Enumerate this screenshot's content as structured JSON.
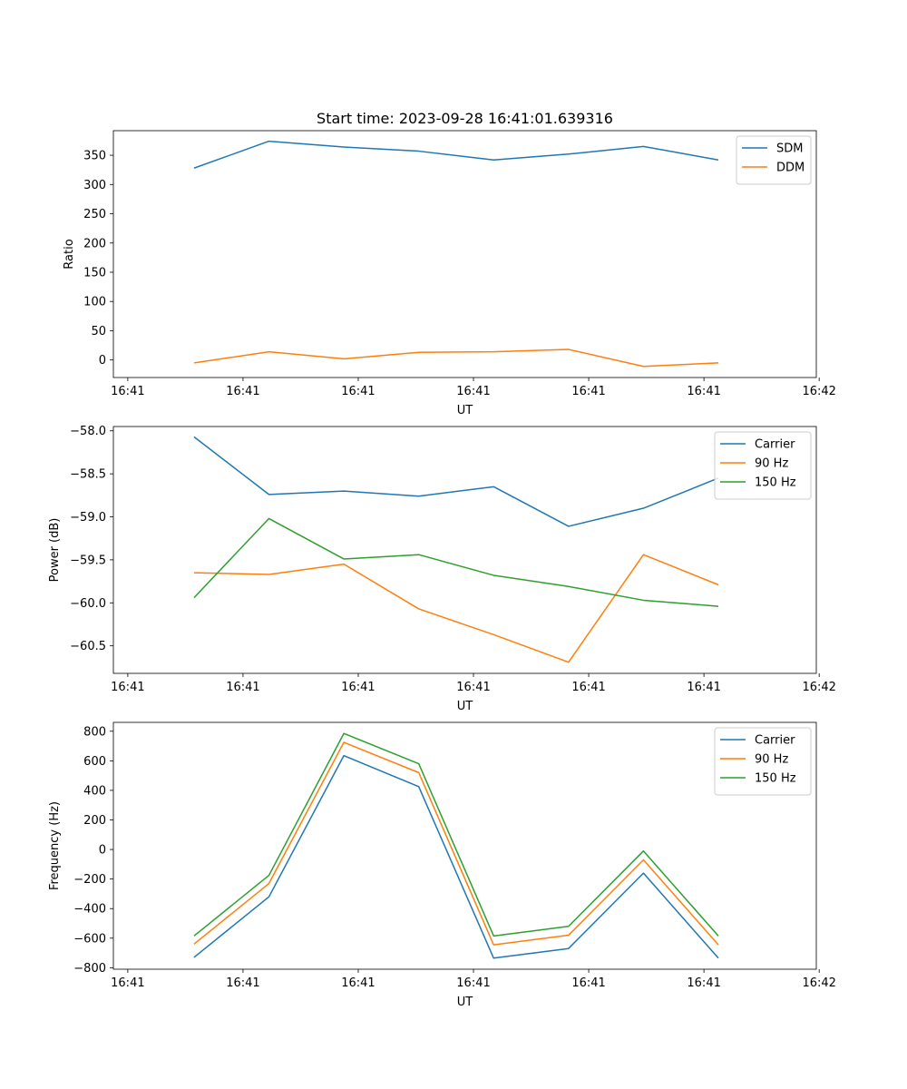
{
  "figure_title": "Start time: 2023-09-28 16:41:01.639316",
  "x_tick_labels": [
    "16:41",
    "16:41",
    "16:41",
    "16:41",
    "16:41",
    "16:41",
    "16:42"
  ],
  "colors": {
    "blue": "#1f77b4",
    "orange": "#ff7f0e",
    "green": "#2ca02c"
  },
  "chart_data": [
    {
      "type": "line",
      "title": "Start time: 2023-09-28 16:41:01.639316",
      "xlabel": "UT",
      "ylabel": "Ratio",
      "x_seconds": [
        1.4,
        2.7,
        4.0,
        5.3,
        6.6,
        7.9,
        9.2,
        10.5
      ],
      "xlim": [
        0,
        12.2
      ],
      "x_ticks": [
        0.25,
        2.25,
        4.25,
        6.25,
        8.25,
        10.25,
        12.25
      ],
      "ylim": [
        -30,
        392
      ],
      "y_ticks": [
        0,
        50,
        100,
        150,
        200,
        250,
        300,
        350
      ],
      "y_tick_labels": [
        "0",
        "50",
        "100",
        "150",
        "200",
        "250",
        "300",
        "350"
      ],
      "legend_position": "top-right",
      "series": [
        {
          "name": "SDM",
          "color": "blue",
          "values": [
            328,
            374,
            364,
            357,
            342,
            352,
            365,
            342
          ]
        },
        {
          "name": "DDM",
          "color": "orange",
          "values": [
            -5,
            14,
            2,
            13,
            14,
            18,
            -11,
            -5
          ]
        }
      ]
    },
    {
      "type": "line",
      "title": "",
      "xlabel": "UT",
      "ylabel": "Power (dB)",
      "x_seconds": [
        1.4,
        2.7,
        4.0,
        5.3,
        6.6,
        7.9,
        9.2,
        10.5
      ],
      "xlim": [
        0,
        12.2
      ],
      "x_ticks": [
        0.25,
        2.25,
        4.25,
        6.25,
        8.25,
        10.25,
        12.25
      ],
      "ylim": [
        -60.82,
        -57.95
      ],
      "y_ticks": [
        -60.5,
        -60.0,
        -59.5,
        -59.0,
        -58.5,
        -58.0
      ],
      "y_tick_labels": [
        "−60.5",
        "−60.0",
        "−59.5",
        "−59.0",
        "−58.5",
        "−58.0"
      ],
      "legend_position": "top-right",
      "series": [
        {
          "name": "Carrier",
          "color": "blue",
          "values": [
            -58.07,
            -58.74,
            -58.7,
            -58.76,
            -58.65,
            -59.11,
            -58.9,
            -58.55
          ]
        },
        {
          "name": "90 Hz",
          "color": "orange",
          "values": [
            -59.65,
            -59.67,
            -59.55,
            -60.07,
            -60.37,
            -60.69,
            -59.44,
            -59.79
          ]
        },
        {
          "name": "150 Hz",
          "color": "green",
          "values": [
            -59.94,
            -59.02,
            -59.49,
            -59.44,
            -59.68,
            -59.81,
            -59.97,
            -60.04
          ]
        }
      ]
    },
    {
      "type": "line",
      "title": "",
      "xlabel": "UT",
      "ylabel": "Frequency (Hz)",
      "x_seconds": [
        1.4,
        2.7,
        4.0,
        5.3,
        6.6,
        7.9,
        9.2,
        10.5
      ],
      "xlim": [
        0,
        12.2
      ],
      "x_ticks": [
        0.25,
        2.25,
        4.25,
        6.25,
        8.25,
        10.25,
        12.25
      ],
      "ylim": [
        -810,
        860
      ],
      "y_ticks": [
        -800,
        -600,
        -400,
        -200,
        0,
        200,
        400,
        600,
        800
      ],
      "y_tick_labels": [
        "−800",
        "−600",
        "−400",
        "−200",
        "0",
        "200",
        "400",
        "600",
        "800"
      ],
      "legend_position": "top-right",
      "series": [
        {
          "name": "Carrier",
          "color": "blue",
          "values": [
            -730,
            -320,
            635,
            425,
            -735,
            -670,
            -160,
            -735
          ]
        },
        {
          "name": "90 Hz",
          "color": "orange",
          "values": [
            -640,
            -230,
            725,
            520,
            -645,
            -580,
            -70,
            -645
          ]
        },
        {
          "name": "150 Hz",
          "color": "green",
          "values": [
            -585,
            -175,
            785,
            580,
            -585,
            -520,
            -10,
            -585
          ]
        }
      ]
    }
  ]
}
